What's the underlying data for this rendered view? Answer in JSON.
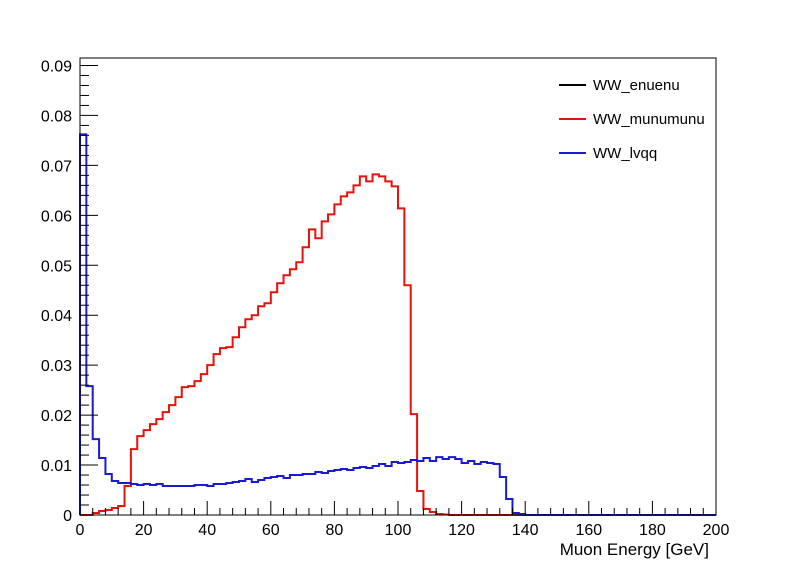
{
  "chart_data": {
    "type": "line",
    "style": "step-histogram",
    "title": "",
    "xlabel": "Muon Energy [GeV]",
    "ylabel": "",
    "xlim": [
      0,
      200
    ],
    "ylim": [
      0,
      0.0915
    ],
    "grid": false,
    "legend_position": "top-right",
    "x_ticks": [
      0,
      20,
      40,
      60,
      80,
      100,
      120,
      140,
      160,
      180,
      200
    ],
    "y_ticks": [
      0,
      0.01,
      0.02,
      0.03,
      0.04,
      0.05,
      0.06,
      0.07,
      0.08,
      0.09
    ],
    "x_tick_labels": [
      "0",
      "20",
      "40",
      "60",
      "80",
      "100",
      "120",
      "140",
      "160",
      "180",
      "200"
    ],
    "y_tick_labels": [
      "0",
      "0.01",
      "0.02",
      "0.03",
      "0.04",
      "0.05",
      "0.06",
      "0.07",
      "0.08",
      "0.09"
    ],
    "bin_width": 2,
    "series": [
      {
        "name": "WW_enuenu",
        "color": "#000000",
        "values": []
      },
      {
        "name": "WW_munumunu",
        "color": "#e8120c",
        "values": [
          0,
          0,
          0.0004,
          0.0008,
          0.001,
          0.0014,
          0.0018,
          0.0058,
          0.0132,
          0.0158,
          0.017,
          0.0182,
          0.0192,
          0.0206,
          0.022,
          0.0236,
          0.0256,
          0.0258,
          0.0268,
          0.0282,
          0.03,
          0.0322,
          0.0334,
          0.0336,
          0.0356,
          0.0376,
          0.0392,
          0.04,
          0.0418,
          0.0424,
          0.0446,
          0.0464,
          0.048,
          0.0492,
          0.0506,
          0.0536,
          0.0572,
          0.0554,
          0.0588,
          0.0602,
          0.0622,
          0.0638,
          0.0646,
          0.066,
          0.0678,
          0.0668,
          0.0682,
          0.0678,
          0.0668,
          0.0658,
          0.0614,
          0.046,
          0.0202,
          0.0048,
          0.0012,
          0.0006,
          0.0002,
          0.0001,
          0,
          0,
          0,
          0,
          0,
          0,
          0,
          0,
          0,
          0,
          0,
          0,
          0,
          0,
          0,
          0,
          0,
          0,
          0,
          0,
          0,
          0,
          0,
          0,
          0,
          0,
          0,
          0,
          0,
          0,
          0,
          0,
          0,
          0,
          0,
          0,
          0,
          0,
          0,
          0,
          0,
          0
        ]
      },
      {
        "name": "WW_lvqq",
        "color": "#1a1ad4",
        "values": [
          0.0762,
          0.0258,
          0.0152,
          0.0114,
          0.0082,
          0.0068,
          0.0064,
          0.0064,
          0.0062,
          0.006,
          0.0062,
          0.006,
          0.0062,
          0.0058,
          0.0058,
          0.0058,
          0.0058,
          0.0058,
          0.006,
          0.006,
          0.0058,
          0.0062,
          0.0062,
          0.0064,
          0.0066,
          0.0068,
          0.0072,
          0.0066,
          0.007,
          0.0074,
          0.0076,
          0.0078,
          0.0074,
          0.008,
          0.008,
          0.0082,
          0.0082,
          0.0086,
          0.0084,
          0.0088,
          0.009,
          0.0092,
          0.009,
          0.0094,
          0.0096,
          0.0094,
          0.0098,
          0.0102,
          0.0098,
          0.0106,
          0.0104,
          0.0106,
          0.011,
          0.0108,
          0.0114,
          0.0108,
          0.0116,
          0.0112,
          0.0116,
          0.0112,
          0.0104,
          0.0108,
          0.0102,
          0.0106,
          0.0104,
          0.0102,
          0.0076,
          0.0032,
          0.0004,
          0.0002,
          0,
          0,
          0,
          0,
          0,
          0,
          0,
          0,
          0,
          0,
          0,
          0,
          0,
          0,
          0,
          0,
          0,
          0,
          0,
          0,
          0,
          0,
          0,
          0,
          0,
          0,
          0,
          0,
          0,
          0
        ]
      }
    ]
  }
}
